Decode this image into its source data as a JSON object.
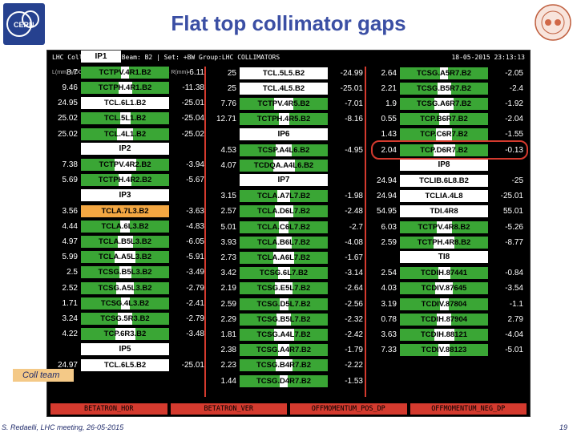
{
  "title": "Flat top collimator gaps",
  "topbar": {
    "left": "LHC Collimators | Beam: B2 | Set: +BW Group:LHC COLLIMATORS",
    "right": "18-05-2015 23:13:13"
  },
  "units": {
    "left": "L(mm) MDC",
    "right": "PRS R(mm)"
  },
  "headers": {
    "ip1": "IP1",
    "ip2": "IP2",
    "ip3": "IP3",
    "ip5": "IP5",
    "ip6": "IP6",
    "ip7": "IP7",
    "ip8": "IP8",
    "ti8": "TI8"
  },
  "col1": [
    {
      "l": "8.7",
      "n": "TCTPV.4R1.B2",
      "r": "-6.11",
      "t": "g"
    },
    {
      "l": "9.46",
      "n": "TCTPH.4R1.B2",
      "r": "-11.38",
      "t": "g"
    },
    {
      "l": "24.95",
      "n": "TCL.6L1.B2",
      "r": "-25.01",
      "t": "w"
    },
    {
      "l": "25.02",
      "n": "TCL.5L1.B2",
      "r": "-25.04",
      "t": "g"
    },
    {
      "l": "25.02",
      "n": "TCL.4L1.B2",
      "r": "-25.02",
      "t": "g"
    },
    {
      "l": "7.38",
      "n": "TCTPV.4R2.B2",
      "r": "-3.94",
      "t": "g"
    },
    {
      "l": "5.69",
      "n": "TCTPH.4R2.B2",
      "r": "-5.67",
      "t": "g"
    },
    {
      "l": "3.56",
      "n": "TCLA.7L3.B2",
      "r": "-3.63",
      "t": "o"
    },
    {
      "l": "4.44",
      "n": "TCLA.6L3.B2",
      "r": "-4.83",
      "t": "g"
    },
    {
      "l": "4.97",
      "n": "TCLA.B5L3.B2",
      "r": "-6.05",
      "t": "g"
    },
    {
      "l": "5.99",
      "n": "TCLA.A5L3.B2",
      "r": "-5.91",
      "t": "g"
    },
    {
      "l": "2.5",
      "n": "TCSG.B5L3.B2",
      "r": "-3.49",
      "t": "g"
    },
    {
      "l": "2.52",
      "n": "TCSG.A5L3.B2",
      "r": "-2.79",
      "t": "g"
    },
    {
      "l": "1.71",
      "n": "TCSG.4L3.B2",
      "r": "-2.41",
      "t": "g"
    },
    {
      "l": "3.24",
      "n": "TCSG.5R3.B2",
      "r": "-2.79",
      "t": "g"
    },
    {
      "l": "4.22",
      "n": "TCP.6R3.B2",
      "r": "-3.48",
      "t": "g"
    },
    {
      "l": "24.97",
      "n": "TCL.6L5.B2",
      "r": "-25.01",
      "t": "w"
    }
  ],
  "col2": [
    {
      "l": "25",
      "n": "TCL.5L5.B2",
      "r": "-24.99",
      "t": "w"
    },
    {
      "l": "25",
      "n": "TCL.4L5.B2",
      "r": "-25.01",
      "t": "w"
    },
    {
      "l": "7.76",
      "n": "TCTPV.4R5.B2",
      "r": "-7.01",
      "t": "g"
    },
    {
      "l": "12.71",
      "n": "TCTPH.4R5.B2",
      "r": "-8.16",
      "t": "g"
    },
    {
      "l": "4.53",
      "n": "TCSP.A4L6.B2",
      "r": "-4.95",
      "t": "g"
    },
    {
      "l": "4.07",
      "n": "TCDQA.A4L6.B2",
      "r": "",
      "t": "g"
    },
    {
      "l": "3.15",
      "n": "TCLA.A7L7.B2",
      "r": "-1.98",
      "t": "g"
    },
    {
      "l": "2.57",
      "n": "TCLA.D6L7.B2",
      "r": "-2.48",
      "t": "g"
    },
    {
      "l": "5.01",
      "n": "TCLA.C6L7.B2",
      "r": "-2.7",
      "t": "g"
    },
    {
      "l": "3.93",
      "n": "TCLA.B6L7.B2",
      "r": "-4.08",
      "t": "g"
    },
    {
      "l": "2.73",
      "n": "TCLA.A6L7.B2",
      "r": "-1.67",
      "t": "g"
    },
    {
      "l": "3.42",
      "n": "TCSG.6L7.B2",
      "r": "-3.14",
      "t": "g"
    },
    {
      "l": "2.19",
      "n": "TCSG.E5L7.B2",
      "r": "-2.64",
      "t": "g"
    },
    {
      "l": "2.59",
      "n": "TCSG.D5L7.B2",
      "r": "-2.56",
      "t": "g"
    },
    {
      "l": "2.29",
      "n": "TCSG.B5L7.B2",
      "r": "-2.32",
      "t": "g"
    },
    {
      "l": "1.81",
      "n": "TCSG.A4L7.B2",
      "r": "-2.42",
      "t": "g"
    },
    {
      "l": "2.38",
      "n": "TCSG.A4R7.B2",
      "r": "-1.79",
      "t": "g"
    },
    {
      "l": "2.23",
      "n": "TCSG.B4R7.B2",
      "r": "-2.22",
      "t": "g"
    },
    {
      "l": "1.44",
      "n": "TCSG.D4R7.B2",
      "r": "-1.53",
      "t": "g"
    }
  ],
  "col3": [
    {
      "l": "2.64",
      "n": "TCSG.A5R7.B2",
      "r": "-2.05",
      "t": "g"
    },
    {
      "l": "2.21",
      "n": "TCSG.B5R7.B2",
      "r": "-2.4",
      "t": "g"
    },
    {
      "l": "1.9",
      "n": "TCSG.A6R7.B2",
      "r": "-1.92",
      "t": "g"
    },
    {
      "l": "0.55",
      "n": "TCP.B6R7.B2",
      "r": "-2.04",
      "t": "g"
    },
    {
      "l": "1.43",
      "n": "TCP.C6R7.B2",
      "r": "-1.55",
      "t": "g"
    },
    {
      "l": "2.04",
      "n": "TCP.D6R7.B2",
      "r": "-0.13",
      "t": "g"
    },
    {
      "l": "24.94",
      "n": "TCLIB.6L8.B2",
      "r": "-25",
      "t": "w"
    },
    {
      "l": "24.94",
      "n": "TCLIA.4L8",
      "r": "-25.01",
      "t": "w"
    },
    {
      "l": "54.95",
      "n": "TDI.4R8",
      "r": "55.01",
      "t": "w"
    },
    {
      "l": "6.03",
      "n": "TCTPV.4R8.B2",
      "r": "-5.26",
      "t": "g"
    },
    {
      "l": "2.59",
      "n": "TCTPH.4R8.B2",
      "r": "-8.77",
      "t": "g"
    },
    {
      "l": "2.54",
      "n": "TCDIH.87441",
      "r": "-0.84",
      "t": "g"
    },
    {
      "l": "4.03",
      "n": "TCDIV.87645",
      "r": "-3.54",
      "t": "g"
    },
    {
      "l": "3.19",
      "n": "TCDIV.87804",
      "r": "-1.1",
      "t": "g"
    },
    {
      "l": "0.78",
      "n": "TCDIH.87904",
      "r": "2.79",
      "t": "g"
    },
    {
      "l": "3.63",
      "n": "TCDIH.88121",
      "r": "-4.04",
      "t": "g"
    },
    {
      "l": "7.33",
      "n": "TCDIV.88123",
      "r": "-5.01",
      "t": "g"
    }
  ],
  "footer": [
    "BETATRON_HOR",
    "BETATRON_VER",
    "OFFMOMENTUM_POS_DP",
    "OFFMOMENTUM_NEG_DP"
  ],
  "coll_label": "Coll team",
  "author": "S. Redaelli, LHC meeting, 26-05-2015",
  "page": "19"
}
